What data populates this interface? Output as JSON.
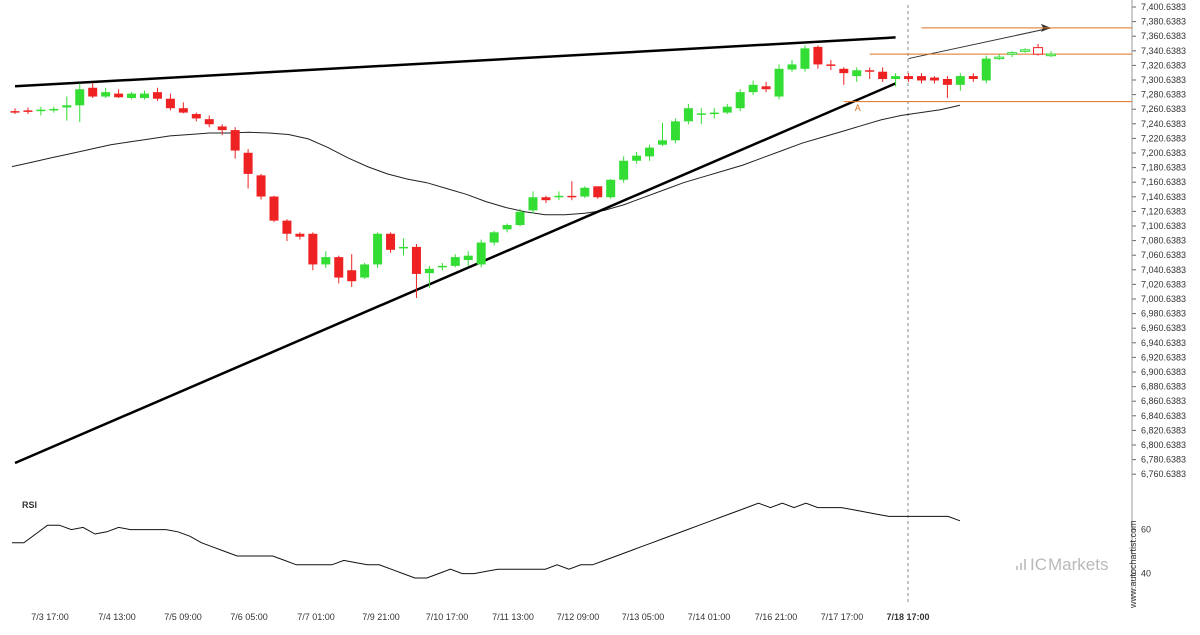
{
  "chart_data": [
    {
      "type": "candlestick",
      "title": "",
      "ylim": [
        6740.6383,
        7410.6383
      ],
      "y_ticks": [
        "7,400.6383",
        "7,380.6383",
        "7,360.6383",
        "7,340.6383",
        "7,320.6383",
        "7,300.6383",
        "7,280.6383",
        "7,260.6383",
        "7,240.6383",
        "7,220.6383",
        "7,200.6383",
        "7,180.6383",
        "7,160.6383",
        "7,140.6383",
        "7,120.6383",
        "7,100.6383",
        "7,080.6383",
        "7,060.6383",
        "7,040.6383",
        "7,020.6383",
        "7,000.6383",
        "6,980.6383",
        "6,960.6383",
        "6,940.6383",
        "6,920.6383",
        "6,900.6383",
        "6,880.6383",
        "6,860.6383",
        "6,840.6383",
        "6,820.6383",
        "6,800.6383",
        "6,780.6383",
        "6,760.6383"
      ],
      "x_ticks": [
        "7/3 17:00",
        "7/4 13:00",
        "7/5 09:00",
        "7/6 05:00",
        "7/7 01:00",
        "7/9 21:00",
        "7/10 17:00",
        "7/11 13:00",
        "7/12 09:00",
        "7/13 05:00",
        "7/14 01:00",
        "7/16 21:00",
        "7/17 17:00",
        "7/18 17:00"
      ],
      "current_time_label": "7/18 17:00",
      "up_color": "#33dd33",
      "down_color": "#ee2222",
      "candles": [
        {
          "o": 7258,
          "h": 7262,
          "l": 7254,
          "c": 7256
        },
        {
          "o": 7259,
          "h": 7263,
          "l": 7254,
          "c": 7257
        },
        {
          "o": 7258,
          "h": 7264,
          "l": 7252,
          "c": 7260
        },
        {
          "o": 7260,
          "h": 7264,
          "l": 7256,
          "c": 7261
        },
        {
          "o": 7263,
          "h": 7278,
          "l": 7245,
          "c": 7266
        },
        {
          "o": 7266,
          "h": 7296,
          "l": 7243,
          "c": 7288
        },
        {
          "o": 7290,
          "h": 7296,
          "l": 7276,
          "c": 7278
        },
        {
          "o": 7278,
          "h": 7290,
          "l": 7276,
          "c": 7284
        },
        {
          "o": 7282,
          "h": 7288,
          "l": 7276,
          "c": 7277
        },
        {
          "o": 7276,
          "h": 7284,
          "l": 7274,
          "c": 7282
        },
        {
          "o": 7276,
          "h": 7286,
          "l": 7274,
          "c": 7282
        },
        {
          "o": 7284,
          "h": 7290,
          "l": 7272,
          "c": 7275
        },
        {
          "o": 7275,
          "h": 7282,
          "l": 7259,
          "c": 7262
        },
        {
          "o": 7262,
          "h": 7270,
          "l": 7255,
          "c": 7256
        },
        {
          "o": 7254,
          "h": 7256,
          "l": 7244,
          "c": 7248
        },
        {
          "o": 7247,
          "h": 7252,
          "l": 7236,
          "c": 7240
        },
        {
          "o": 7237,
          "h": 7240,
          "l": 7225,
          "c": 7232
        },
        {
          "o": 7232,
          "h": 7236,
          "l": 7193,
          "c": 7204
        },
        {
          "o": 7201,
          "h": 7206,
          "l": 7152,
          "c": 7172
        },
        {
          "o": 7170,
          "h": 7172,
          "l": 7137,
          "c": 7141
        },
        {
          "o": 7141,
          "h": 7142,
          "l": 7106,
          "c": 7108
        },
        {
          "o": 7108,
          "h": 7110,
          "l": 7080,
          "c": 7090
        },
        {
          "o": 7090,
          "h": 7092,
          "l": 7082,
          "c": 7086
        },
        {
          "o": 7090,
          "h": 7092,
          "l": 7040,
          "c": 7048
        },
        {
          "o": 7048,
          "h": 7066,
          "l": 7043,
          "c": 7058
        },
        {
          "o": 7058,
          "h": 7060,
          "l": 7022,
          "c": 7030
        },
        {
          "o": 7040,
          "h": 7062,
          "l": 7017,
          "c": 7025
        },
        {
          "o": 7030,
          "h": 7050,
          "l": 7028,
          "c": 7048
        },
        {
          "o": 7048,
          "h": 7092,
          "l": 7043,
          "c": 7090
        },
        {
          "o": 7090,
          "h": 7092,
          "l": 7064,
          "c": 7068
        },
        {
          "o": 7070,
          "h": 7084,
          "l": 7060,
          "c": 7072
        },
        {
          "o": 7072,
          "h": 7076,
          "l": 7002,
          "c": 7035
        },
        {
          "o": 7036,
          "h": 7046,
          "l": 7016,
          "c": 7042
        },
        {
          "o": 7044,
          "h": 7050,
          "l": 7040,
          "c": 7046
        },
        {
          "o": 7046,
          "h": 7062,
          "l": 7044,
          "c": 7058
        },
        {
          "o": 7054,
          "h": 7066,
          "l": 7046,
          "c": 7060
        },
        {
          "o": 7048,
          "h": 7082,
          "l": 7044,
          "c": 7078
        },
        {
          "o": 7078,
          "h": 7094,
          "l": 7074,
          "c": 7092
        },
        {
          "o": 7096,
          "h": 7104,
          "l": 7092,
          "c": 7102
        },
        {
          "o": 7102,
          "h": 7124,
          "l": 7100,
          "c": 7120
        },
        {
          "o": 7122,
          "h": 7148,
          "l": 7118,
          "c": 7140
        },
        {
          "o": 7140,
          "h": 7142,
          "l": 7132,
          "c": 7136
        },
        {
          "o": 7140,
          "h": 7148,
          "l": 7136,
          "c": 7142
        },
        {
          "o": 7142,
          "h": 7162,
          "l": 7136,
          "c": 7140
        },
        {
          "o": 7141,
          "h": 7155,
          "l": 7139,
          "c": 7153
        },
        {
          "o": 7155,
          "h": 7155,
          "l": 7138,
          "c": 7140
        },
        {
          "o": 7140,
          "h": 7165,
          "l": 7138,
          "c": 7164
        },
        {
          "o": 7164,
          "h": 7196,
          "l": 7160,
          "c": 7190
        },
        {
          "o": 7190,
          "h": 7202,
          "l": 7186,
          "c": 7197
        },
        {
          "o": 7196,
          "h": 7212,
          "l": 7190,
          "c": 7208
        },
        {
          "o": 7212,
          "h": 7242,
          "l": 7210,
          "c": 7218
        },
        {
          "o": 7218,
          "h": 7248,
          "l": 7214,
          "c": 7244
        },
        {
          "o": 7244,
          "h": 7268,
          "l": 7240,
          "c": 7262
        },
        {
          "o": 7254,
          "h": 7262,
          "l": 7240,
          "c": 7255
        },
        {
          "o": 7255,
          "h": 7262,
          "l": 7248,
          "c": 7256
        },
        {
          "o": 7256,
          "h": 7268,
          "l": 7254,
          "c": 7264
        },
        {
          "o": 7262,
          "h": 7288,
          "l": 7258,
          "c": 7284
        },
        {
          "o": 7284,
          "h": 7300,
          "l": 7280,
          "c": 7294
        },
        {
          "o": 7292,
          "h": 7298,
          "l": 7284,
          "c": 7288
        },
        {
          "o": 7278,
          "h": 7322,
          "l": 7274,
          "c": 7316
        },
        {
          "o": 7315,
          "h": 7328,
          "l": 7312,
          "c": 7322
        },
        {
          "o": 7316,
          "h": 7348,
          "l": 7312,
          "c": 7344
        },
        {
          "o": 7346,
          "h": 7348,
          "l": 7316,
          "c": 7322
        },
        {
          "o": 7322,
          "h": 7328,
          "l": 7314,
          "c": 7320
        },
        {
          "o": 7316,
          "h": 7318,
          "l": 7294,
          "c": 7310
        },
        {
          "o": 7306,
          "h": 7318,
          "l": 7298,
          "c": 7314
        },
        {
          "o": 7314,
          "h": 7318,
          "l": 7302,
          "c": 7312
        },
        {
          "o": 7312,
          "h": 7318,
          "l": 7298,
          "c": 7302
        },
        {
          "o": 7302,
          "h": 7310,
          "l": 7292,
          "c": 7306
        },
        {
          "o": 7306,
          "h": 7310,
          "l": 7298,
          "c": 7302
        },
        {
          "o": 7306,
          "h": 7310,
          "l": 7296,
          "c": 7300
        },
        {
          "o": 7304,
          "h": 7306,
          "l": 7296,
          "c": 7300
        },
        {
          "o": 7302,
          "h": 7306,
          "l": 7276,
          "c": 7294
        },
        {
          "o": 7294,
          "h": 7310,
          "l": 7286,
          "c": 7306
        },
        {
          "o": 7306,
          "h": 7310,
          "l": 7298,
          "c": 7302
        },
        {
          "o": 7300,
          "h": 7334,
          "l": 7296,
          "c": 7330
        },
        {
          "o": 7330,
          "h": 7336,
          "l": 7328,
          "c": 7332,
          "projected": true
        },
        {
          "o": 7336,
          "h": 7340,
          "l": 7332,
          "c": 7338,
          "projected": true
        },
        {
          "o": 7340,
          "h": 7344,
          "l": 7338,
          "c": 7342,
          "projected": true
        },
        {
          "o": 7345,
          "h": 7350,
          "l": 7334,
          "c": 7336,
          "projected": true
        },
        {
          "o": 7336,
          "h": 7340,
          "l": 7332,
          "c": 7336,
          "projected": true
        }
      ],
      "moving_average": [
        7182,
        7188,
        7194,
        7200,
        7206,
        7212,
        7216,
        7220,
        7224,
        7226,
        7228,
        7228,
        7229,
        7228,
        7226,
        7220,
        7208,
        7194,
        7182,
        7172,
        7165,
        7160,
        7152,
        7144,
        7134,
        7126,
        7120,
        7116,
        7116,
        7118,
        7122,
        7130,
        7140,
        7150,
        7160,
        7168,
        7176,
        7184,
        7194,
        7204,
        7214,
        7222,
        7230,
        7238,
        7246,
        7252,
        7256,
        7260,
        7266
      ],
      "trendlines": [
        {
          "name": "resistance",
          "from": {
            "i": 0,
            "y": 7292
          },
          "to": {
            "i": 68,
            "y": 7359
          }
        },
        {
          "name": "support",
          "from": {
            "i": 0,
            "y": 6776
          },
          "to": {
            "i": 68,
            "y": 7296
          }
        },
        {
          "name": "projection",
          "from": {
            "i": 69,
            "y": 7330
          },
          "to": {
            "i": 80,
            "y": 7372
          }
        }
      ],
      "levels": [
        {
          "name": "target",
          "y": 7372,
          "from_i": 70,
          "color": "#e07020"
        },
        {
          "name": "breakout",
          "y": 7336,
          "from_i": 66,
          "color": "#e07020"
        },
        {
          "name": "stop",
          "y": 7271,
          "from_i": 64,
          "color": "#e07020"
        }
      ],
      "marker": {
        "label": "A",
        "i": 65,
        "y": 7262
      },
      "legend": "none",
      "grid": false
    },
    {
      "type": "line",
      "name": "RSI",
      "title": "RSI",
      "y_ticks": [
        "60",
        "40"
      ],
      "ylim": [
        28,
        78
      ],
      "values": [
        54,
        54,
        58,
        62,
        62,
        60,
        61,
        58,
        59,
        61,
        60,
        60,
        60,
        60,
        59,
        57,
        54,
        52,
        50,
        48,
        48,
        48,
        48,
        46,
        44,
        44,
        44,
        44,
        46,
        45,
        44,
        44,
        42,
        40,
        38,
        38,
        40,
        42,
        40,
        40,
        41,
        42,
        42,
        42,
        42,
        42,
        44,
        42,
        44,
        44,
        46,
        48,
        50,
        52,
        54,
        56,
        58,
        60,
        62,
        64,
        66,
        68,
        70,
        72,
        70,
        72,
        70,
        72,
        70,
        70,
        70,
        69,
        68,
        67,
        66,
        66,
        66,
        66,
        66,
        66,
        64
      ]
    }
  ],
  "side_label": "www.autochartist.com",
  "brand": {
    "prefix": "IC",
    "name": "Markets"
  }
}
